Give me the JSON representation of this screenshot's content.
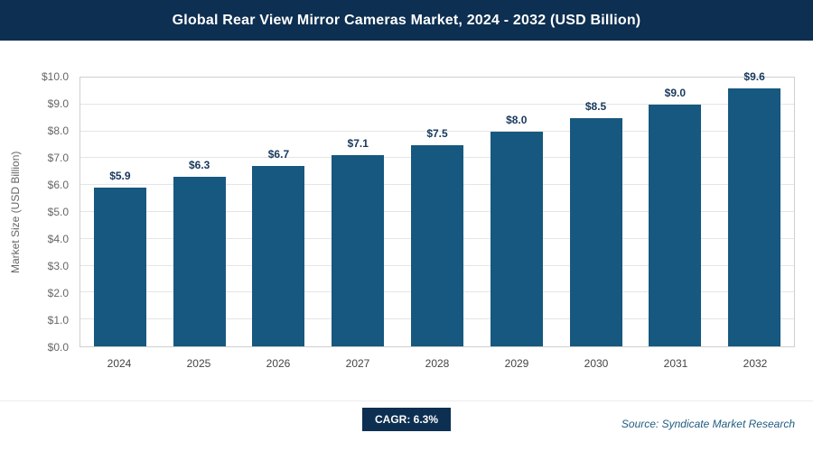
{
  "header": {
    "title": "Global Rear View Mirror Cameras Market, 2024 - 2032 (USD Billion)"
  },
  "chart_data": {
    "type": "bar",
    "title": "Global Rear View Mirror Cameras Market, 2024 - 2032 (USD Billion)",
    "categories": [
      "2024",
      "2025",
      "2026",
      "2027",
      "2028",
      "2029",
      "2030",
      "2031",
      "2032"
    ],
    "values": [
      5.9,
      6.3,
      6.7,
      7.1,
      7.5,
      8.0,
      8.5,
      9.0,
      9.6
    ],
    "value_labels": [
      "$5.9",
      "$6.3",
      "$6.7",
      "$7.1",
      "$7.5",
      "$8.0",
      "$8.5",
      "$9.0",
      "$9.6"
    ],
    "xlabel": "",
    "ylabel": "Market Size (USD Billion)",
    "ylim": [
      0,
      10
    ],
    "ytick_step": 1.0,
    "ytick_labels": [
      "$0.0",
      "$1.0",
      "$2.0",
      "$3.0",
      "$4.0",
      "$5.0",
      "$6.0",
      "$7.0",
      "$8.0",
      "$9.0",
      "$10.0"
    ],
    "grid": true,
    "legend": "none",
    "bar_color": "#16587f"
  },
  "colors": {
    "header_bg": "#0d2f51",
    "badge_bg": "#0d2f51",
    "bar_color": "#16587f"
  },
  "footer": {
    "cagr_label": "CAGR: 6.3%",
    "source": "Source: Syndicate Market Research"
  }
}
